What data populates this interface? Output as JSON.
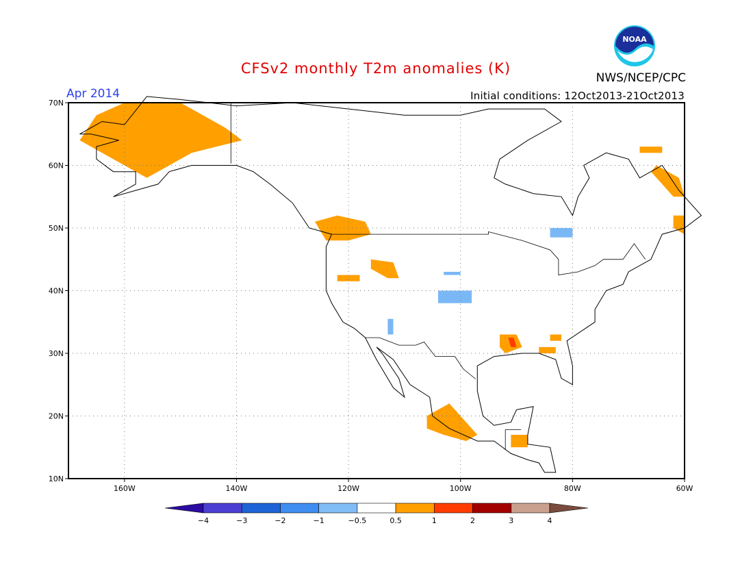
{
  "header": {
    "title": "CFSv2 monthly T2m anomalies (K)",
    "period": "Apr 2014",
    "initial_conditions": "Initial conditions: 12Oct2013-21Oct2013",
    "agency": "NWS/NCEP/CPC",
    "logo_text": "NOAA"
  },
  "map": {
    "lon_range": [
      -170,
      -60
    ],
    "lat_range": [
      10,
      70
    ],
    "lon_ticks": [
      {
        "value": -160,
        "label": "160W"
      },
      {
        "value": -140,
        "label": "140W"
      },
      {
        "value": -120,
        "label": "120W"
      },
      {
        "value": -100,
        "label": "100W"
      },
      {
        "value": -80,
        "label": "80W"
      },
      {
        "value": -60,
        "label": "60W"
      }
    ],
    "lat_ticks": [
      {
        "value": 10,
        "label": "10N"
      },
      {
        "value": 20,
        "label": "20N"
      },
      {
        "value": 30,
        "label": "30N"
      },
      {
        "value": 40,
        "label": "40N"
      },
      {
        "value": 50,
        "label": "50N"
      },
      {
        "value": 60,
        "label": "60N"
      },
      {
        "value": 70,
        "label": "70N"
      }
    ],
    "anomaly_regions": [
      {
        "name": "alaska-warm",
        "color": "#ff9f00",
        "polygon": [
          [
            -165,
            68
          ],
          [
            -160,
            70
          ],
          [
            -150,
            70
          ],
          [
            -146,
            68
          ],
          [
            -142,
            66
          ],
          [
            -139,
            64
          ],
          [
            -148,
            62
          ],
          [
            -152,
            60
          ],
          [
            -156,
            58
          ],
          [
            -160,
            60
          ],
          [
            -164,
            62
          ],
          [
            -168,
            64
          ]
        ]
      },
      {
        "name": "pacific-nw-warm",
        "color": "#ff9f00",
        "polygon": [
          [
            -126,
            51
          ],
          [
            -122,
            52
          ],
          [
            -117,
            51
          ],
          [
            -116,
            49
          ],
          [
            -120,
            48
          ],
          [
            -124,
            48
          ]
        ]
      },
      {
        "name": "idaho-warm",
        "color": "#ff9f00",
        "polygon": [
          [
            -116,
            45
          ],
          [
            -112,
            44.5
          ],
          [
            -111,
            42
          ],
          [
            -113,
            42
          ],
          [
            -116,
            43.5
          ]
        ]
      },
      {
        "name": "nevada-warm",
        "color": "#ff9f00",
        "polygon": [
          [
            -122,
            42.5
          ],
          [
            -118,
            42.5
          ],
          [
            -118,
            41.5
          ],
          [
            -122,
            41.5
          ]
        ]
      },
      {
        "name": "mississippi-warm",
        "color": "#ff9f00",
        "polygon": [
          [
            -93,
            33
          ],
          [
            -90,
            33
          ],
          [
            -89,
            31
          ],
          [
            -92,
            30
          ],
          [
            -93,
            31
          ]
        ]
      },
      {
        "name": "mississippi-hot",
        "color": "#ff3d00",
        "polygon": [
          [
            -91.5,
            32.5
          ],
          [
            -90.5,
            32.5
          ],
          [
            -90,
            31
          ],
          [
            -91,
            31
          ]
        ]
      },
      {
        "name": "florida-warm",
        "color": "#ff9f00",
        "polygon": [
          [
            -86,
            31
          ],
          [
            -83,
            31
          ],
          [
            -83,
            30
          ],
          [
            -86,
            30
          ]
        ]
      },
      {
        "name": "georgia-warm",
        "color": "#ff9f00",
        "polygon": [
          [
            -84,
            33
          ],
          [
            -82,
            33
          ],
          [
            -82,
            32
          ],
          [
            -84,
            32
          ]
        ]
      },
      {
        "name": "mexico-warm",
        "color": "#ff9f00",
        "polygon": [
          [
            -106,
            20
          ],
          [
            -102,
            22
          ],
          [
            -100,
            20
          ],
          [
            -97,
            17
          ],
          [
            -99,
            16
          ],
          [
            -103,
            17
          ],
          [
            -106,
            18
          ]
        ]
      },
      {
        "name": "central-america-warm",
        "color": "#ff9f00",
        "polygon": [
          [
            -91,
            17
          ],
          [
            -88,
            17
          ],
          [
            -88,
            15
          ],
          [
            -91,
            15
          ]
        ]
      },
      {
        "name": "labrador-warm",
        "color": "#ff9f00",
        "polygon": [
          [
            -65,
            60
          ],
          [
            -61,
            58
          ],
          [
            -60,
            55
          ],
          [
            -62,
            55
          ],
          [
            -64,
            57
          ],
          [
            -66,
            59
          ]
        ]
      },
      {
        "name": "newfoundland-warm",
        "color": "#ff9f00",
        "polygon": [
          [
            -62,
            52
          ],
          [
            -60,
            52
          ],
          [
            -60,
            49
          ],
          [
            -62,
            50
          ]
        ]
      },
      {
        "name": "baffin-warm",
        "color": "#ff9f00",
        "polygon": [
          [
            -68,
            63
          ],
          [
            -64,
            63
          ],
          [
            -64,
            62
          ],
          [
            -68,
            62
          ]
        ]
      },
      {
        "name": "kansas-cool",
        "color": "#7ab8f5",
        "polygon": [
          [
            -104,
            40
          ],
          [
            -98,
            40
          ],
          [
            -98,
            38
          ],
          [
            -104,
            38
          ]
        ]
      },
      {
        "name": "nebraska-cool",
        "color": "#7ab8f5",
        "polygon": [
          [
            -103,
            43
          ],
          [
            -100,
            43
          ],
          [
            -100,
            42.5
          ],
          [
            -103,
            42.5
          ]
        ]
      },
      {
        "name": "arizona-cool",
        "color": "#7ab8f5",
        "polygon": [
          [
            -113,
            35.5
          ],
          [
            -112,
            35.5
          ],
          [
            -112,
            33
          ],
          [
            -113,
            33
          ]
        ]
      },
      {
        "name": "ontario-cool",
        "color": "#7ab8f5",
        "polygon": [
          [
            -84,
            50
          ],
          [
            -80,
            50
          ],
          [
            -80,
            48.5
          ],
          [
            -84,
            48.5
          ]
        ]
      }
    ],
    "coastline_points": [
      [
        [
          -168,
          65
        ],
        [
          -164,
          67
        ],
        [
          -160,
          66.5
        ],
        [
          -156,
          71
        ],
        [
          -150,
          70.5
        ],
        [
          -140,
          69.5
        ],
        [
          -130,
          70
        ],
        [
          -120,
          69
        ],
        [
          -110,
          68
        ],
        [
          -100,
          68
        ],
        [
          -95,
          69
        ],
        [
          -90,
          69
        ],
        [
          -85,
          69
        ],
        [
          -82,
          67
        ],
        [
          -88,
          64
        ],
        [
          -93,
          61
        ],
        [
          -94,
          58
        ],
        [
          -92,
          57
        ],
        [
          -87,
          55.5
        ],
        [
          -82,
          55
        ],
        [
          -80,
          52
        ],
        [
          -79,
          55
        ],
        [
          -77,
          58
        ],
        [
          -78,
          60
        ],
        [
          -74,
          62
        ],
        [
          -70,
          61
        ],
        [
          -68,
          58
        ],
        [
          -64,
          60
        ],
        [
          -61,
          56
        ],
        [
          -57,
          52
        ],
        [
          -60,
          50
        ],
        [
          -64,
          49
        ],
        [
          -66,
          45
        ],
        [
          -70,
          43
        ],
        [
          -71,
          41
        ],
        [
          -74,
          40
        ],
        [
          -76,
          37
        ],
        [
          -76,
          35
        ],
        [
          -81,
          32
        ],
        [
          -80,
          28
        ],
        [
          -80,
          25
        ],
        [
          -82,
          26
        ],
        [
          -83,
          29
        ],
        [
          -86,
          30
        ],
        [
          -89,
          30
        ],
        [
          -94,
          29.5
        ],
        [
          -97,
          28
        ],
        [
          -97,
          24
        ],
        [
          -96,
          20
        ],
        [
          -94,
          18.5
        ],
        [
          -91,
          19
        ],
        [
          -90,
          21
        ],
        [
          -87,
          21.5
        ],
        [
          -88,
          17
        ],
        [
          -88,
          15.5
        ],
        [
          -84,
          15
        ],
        [
          -83,
          11
        ],
        [
          -85,
          11
        ],
        [
          -86,
          12.5
        ],
        [
          -88,
          13
        ],
        [
          -91,
          14
        ],
        [
          -94,
          16
        ],
        [
          -97,
          16
        ],
        [
          -102,
          18
        ],
        [
          -105,
          20
        ],
        [
          -105.5,
          23
        ],
        [
          -109,
          25
        ],
        [
          -112,
          29
        ],
        [
          -115,
          31
        ],
        [
          -114,
          30
        ],
        [
          -111,
          26
        ],
        [
          -110,
          23
        ],
        [
          -112,
          24.5
        ],
        [
          -114,
          27.5
        ],
        [
          -115,
          29
        ],
        [
          -117,
          32.5
        ],
        [
          -119,
          34
        ],
        [
          -121,
          35
        ],
        [
          -123,
          38
        ],
        [
          -124,
          40
        ],
        [
          -124,
          43
        ],
        [
          -124,
          47
        ],
        [
          -123,
          49
        ],
        [
          -127,
          50
        ],
        [
          -130,
          54
        ],
        [
          -134,
          57
        ],
        [
          -137,
          59
        ],
        [
          -140,
          60
        ],
        [
          -144,
          60
        ],
        [
          -148,
          60
        ],
        [
          -152,
          59
        ],
        [
          -154,
          57
        ],
        [
          -158,
          56
        ],
        [
          -162,
          55
        ],
        [
          -158,
          57
        ],
        [
          -158,
          59
        ],
        [
          -162,
          59
        ],
        [
          -165,
          61
        ],
        [
          -165,
          63
        ],
        [
          -161,
          64
        ],
        [
          -166,
          65
        ],
        [
          -168,
          65
        ]
      ]
    ],
    "borders": [
      [
        [
          -141,
          60.3
        ],
        [
          -141,
          70
        ]
      ],
      [
        [
          -123,
          49
        ],
        [
          -95,
          49
        ],
        [
          -95,
          49.4
        ],
        [
          -89,
          48
        ],
        [
          -84,
          46.5
        ],
        [
          -82.5,
          45
        ],
        [
          -82.5,
          42.5
        ],
        [
          -79,
          43
        ],
        [
          -76,
          44
        ],
        [
          -74.5,
          45
        ],
        [
          -71,
          45
        ],
        [
          -69,
          47.5
        ],
        [
          -67,
          45
        ]
      ],
      [
        [
          -117,
          32.5
        ],
        [
          -114.5,
          32.5
        ],
        [
          -111,
          31.3
        ],
        [
          -108,
          31.3
        ],
        [
          -106.5,
          31.8
        ],
        [
          -104.5,
          29.5
        ],
        [
          -101,
          29.5
        ],
        [
          -99.5,
          27.5
        ],
        [
          -97.3,
          25.9
        ]
      ],
      [
        [
          -92,
          14.6
        ],
        [
          -92,
          17.8
        ],
        [
          -91,
          17.8
        ],
        [
          -89.2,
          17.8
        ]
      ]
    ]
  },
  "legend": {
    "bins": [
      {
        "color": "#2a0ca0",
        "label": ""
      },
      {
        "color": "#4b3fd1",
        "label": "−4"
      },
      {
        "color": "#1f64d6",
        "label": "−3"
      },
      {
        "color": "#3f8df0",
        "label": "−2"
      },
      {
        "color": "#80bdf6",
        "label": "−1"
      },
      {
        "color": "#ffffff",
        "label": "−0.5"
      },
      {
        "color": "#ff9f00",
        "label": "0.5"
      },
      {
        "color": "#ff3d00",
        "label": "1"
      },
      {
        "color": "#a30000",
        "label": "2"
      },
      {
        "color": "#c9a08e",
        "label": "3"
      },
      {
        "color": "#7a4c3e",
        "label": "4"
      }
    ]
  }
}
